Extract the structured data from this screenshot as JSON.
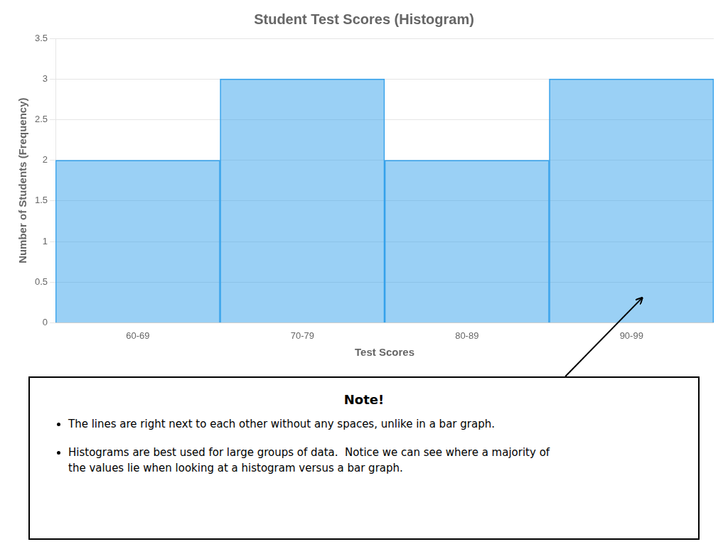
{
  "chart_data": {
    "type": "bar",
    "title": "Student Test Scores (Histogram)",
    "xlabel": "Test Scores",
    "ylabel": "Number of Students (Frequency)",
    "categories": [
      "60-69",
      "70-79",
      "80-89",
      "90-99"
    ],
    "values": [
      2,
      3,
      2,
      3
    ],
    "ylim": [
      0,
      3.5
    ],
    "yticks": [
      0,
      0.5,
      1,
      1.5,
      2,
      2.5,
      3,
      3.5
    ],
    "grid": true,
    "annotations": [
      "Note!",
      "The lines are right next to each other without any spaces, unlike in a bar graph.",
      "Histograms are best used for large groups of data.  Notice we can see where a majority of\nthe values lie when looking at a histogram versus a bar graph."
    ]
  }
}
